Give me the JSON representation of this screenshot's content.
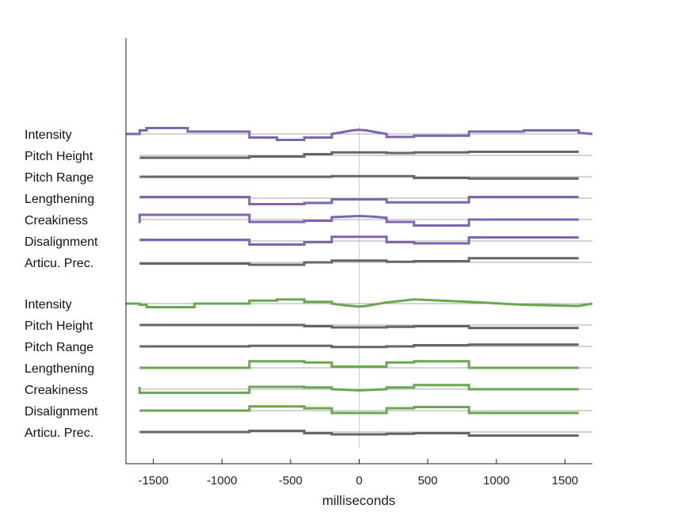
{
  "chart_data": {
    "type": "line",
    "title": "",
    "xlabel": "milliseconds",
    "ylabel": "",
    "xlim": [
      -1700,
      1700
    ],
    "xticks": [
      -1500,
      -1000,
      -500,
      0,
      500,
      1000,
      1500
    ],
    "xtick_labels": [
      "-1500",
      "-1000",
      "-500",
      "0",
      "500",
      "1000",
      "1500"
    ],
    "grid": false,
    "legend": "none",
    "colors": {
      "purple": "#8064b4",
      "green": "#6aa84f",
      "gray": "#666666",
      "baseline": "#aaaaaa",
      "zero_line": "#cccccc"
    },
    "groups": [
      {
        "color": "purple",
        "rows": [
          {
            "label": "Intensity",
            "color": "purple",
            "x": [
              -1700,
              -1600,
              -1600,
              -1550,
              -1550,
              -1250,
              -1250,
              -800,
              -800,
              -600,
              -600,
              -400,
              -400,
              -200,
              -200,
              -100,
              -50,
              0,
              50,
              100,
              200,
              200,
              400,
              400,
              800,
              800,
              1200,
              1200,
              1600,
              1600,
              1700
            ],
            "y": [
              0,
              0,
              0.3,
              0.3,
              0.5,
              0.5,
              0.2,
              0.2,
              -0.3,
              -0.3,
              -0.5,
              -0.5,
              -0.3,
              -0.3,
              0,
              0.2,
              0.3,
              0.35,
              0.3,
              0.2,
              0,
              -0.25,
              -0.25,
              -0.15,
              -0.15,
              0.2,
              0.2,
              0.3,
              0.3,
              0.1,
              0
            ]
          },
          {
            "label": "Pitch Height",
            "color": "gray",
            "x": [
              -1600,
              -800,
              -800,
              -400,
              -400,
              -200,
              -200,
              200,
              200,
              400,
              400,
              800,
              800,
              1600
            ],
            "y": [
              -0.2,
              -0.2,
              -0.1,
              -0.1,
              0.1,
              0.1,
              0.25,
              0.25,
              0.2,
              0.2,
              0.25,
              0.25,
              0.3,
              0.3
            ]
          },
          {
            "label": "Pitch Range",
            "color": "gray",
            "x": [
              -1600,
              -800,
              -800,
              -200,
              -200,
              200,
              200,
              400,
              400,
              800,
              800,
              1600
            ],
            "y": [
              0,
              0,
              0,
              0,
              0.05,
              0.05,
              0.05,
              0.05,
              -0.1,
              -0.1,
              -0.15,
              -0.15
            ]
          },
          {
            "label": "Lengthening",
            "color": "purple",
            "x": [
              -1600,
              -800,
              -800,
              -400,
              -400,
              -200,
              -200,
              200,
              200,
              400,
              400,
              800,
              800,
              1600
            ],
            "y": [
              0.1,
              0.1,
              -0.5,
              -0.5,
              -0.4,
              -0.4,
              -0.1,
              -0.1,
              -0.35,
              -0.35,
              -0.35,
              -0.35,
              0.1,
              0.1
            ]
          },
          {
            "label": "Creakiness",
            "color": "purple",
            "x": [
              -1600,
              -1600,
              -800,
              -800,
              -400,
              -400,
              -200,
              -200,
              -100,
              0,
              100,
              200,
              200,
              400,
              400,
              800,
              800,
              1600
            ],
            "y": [
              -0.3,
              0.4,
              0.4,
              -0.2,
              -0.2,
              -0.1,
              -0.1,
              0.2,
              0.25,
              0.3,
              0.25,
              0.15,
              -0.2,
              -0.2,
              -0.5,
              -0.5,
              0,
              0
            ]
          },
          {
            "label": "Disalignment",
            "color": "purple",
            "x": [
              -1600,
              -800,
              -800,
              -400,
              -400,
              -200,
              -200,
              200,
              200,
              400,
              400,
              800,
              800,
              1600
            ],
            "y": [
              0.1,
              0.1,
              -0.3,
              -0.3,
              -0.1,
              -0.1,
              0.35,
              0.35,
              -0.1,
              -0.1,
              -0.2,
              -0.2,
              0.3,
              0.3
            ]
          },
          {
            "label": "Articu. Prec.",
            "color": "gray",
            "x": [
              -1600,
              -800,
              -800,
              -400,
              -400,
              -200,
              -200,
              200,
              200,
              400,
              400,
              800,
              800,
              1600
            ],
            "y": [
              -0.1,
              -0.1,
              -0.2,
              -0.2,
              0,
              0,
              0.15,
              0.15,
              0.05,
              0.05,
              0.1,
              0.1,
              0.35,
              0.35
            ]
          }
        ]
      },
      {
        "color": "green",
        "rows": [
          {
            "label": "Intensity",
            "color": "green",
            "x": [
              -1700,
              -1600,
              -1600,
              -1550,
              -1550,
              -1200,
              -1200,
              -800,
              -800,
              -600,
              -600,
              -400,
              -400,
              -200,
              -200,
              -100,
              -50,
              0,
              50,
              100,
              200,
              200,
              400,
              400,
              800,
              800,
              1200,
              1200,
              1600,
              1600,
              1700
            ],
            "y": [
              0,
              0,
              -0.1,
              -0.1,
              -0.3,
              -0.3,
              0,
              0,
              0.25,
              0.25,
              0.35,
              0.35,
              0.15,
              0.15,
              0,
              -0.15,
              -0.2,
              -0.25,
              -0.2,
              -0.1,
              0.1,
              0.1,
              0.35,
              0.35,
              0.15,
              0.15,
              -0.1,
              -0.1,
              -0.2,
              -0.2,
              0
            ]
          },
          {
            "label": "Pitch Height",
            "color": "gray",
            "x": [
              -1600,
              -800,
              -800,
              -400,
              -400,
              -200,
              -200,
              200,
              200,
              400,
              400,
              800,
              800,
              1600
            ],
            "y": [
              0,
              0,
              0,
              0,
              -0.1,
              -0.1,
              -0.2,
              -0.2,
              -0.15,
              -0.15,
              -0.1,
              -0.1,
              -0.25,
              -0.25
            ]
          },
          {
            "label": "Pitch Range",
            "color": "gray",
            "x": [
              -1600,
              -800,
              -800,
              -400,
              -400,
              -200,
              -200,
              200,
              200,
              400,
              400,
              800,
              800,
              1600
            ],
            "y": [
              0,
              0,
              0.05,
              0.05,
              0.05,
              0.05,
              -0.05,
              -0.05,
              0,
              0,
              0.1,
              0.1,
              0.15,
              0.15
            ]
          },
          {
            "label": "Lengthening",
            "color": "green",
            "x": [
              -1600,
              -800,
              -800,
              -400,
              -400,
              -200,
              -200,
              200,
              200,
              400,
              400,
              800,
              800,
              1600
            ],
            "y": [
              0,
              0,
              0.55,
              0.55,
              0.45,
              0.45,
              0.1,
              0.1,
              0.45,
              0.45,
              0.55,
              0.55,
              0,
              0
            ]
          },
          {
            "label": "Creakiness",
            "color": "green",
            "x": [
              -1600,
              -1600,
              -800,
              -800,
              -400,
              -400,
              -200,
              -200,
              -100,
              0,
              100,
              200,
              200,
              400,
              400,
              800,
              800,
              1600
            ],
            "y": [
              0.2,
              -0.3,
              -0.3,
              0.2,
              0.2,
              0.15,
              0.15,
              0,
              -0.05,
              -0.1,
              -0.05,
              0,
              0.15,
              0.15,
              0.35,
              0.35,
              0,
              0
            ]
          },
          {
            "label": "Disalignment",
            "color": "green",
            "x": [
              -1600,
              -800,
              -800,
              -400,
              -400,
              -200,
              -200,
              200,
              200,
              400,
              400,
              800,
              800,
              1600
            ],
            "y": [
              0,
              0,
              0.35,
              0.35,
              0.2,
              0.2,
              -0.2,
              -0.2,
              0.2,
              0.2,
              0.3,
              0.3,
              -0.2,
              -0.2
            ]
          },
          {
            "label": "Articu. Prec.",
            "color": "gray",
            "x": [
              -1600,
              -800,
              -800,
              -400,
              -400,
              -200,
              -200,
              200,
              200,
              400,
              400,
              800,
              800,
              1600
            ],
            "y": [
              0,
              0,
              0.1,
              0.1,
              -0.1,
              -0.1,
              -0.2,
              -0.2,
              -0.15,
              -0.15,
              -0.1,
              -0.1,
              -0.3,
              -0.3
            ]
          }
        ]
      }
    ]
  }
}
